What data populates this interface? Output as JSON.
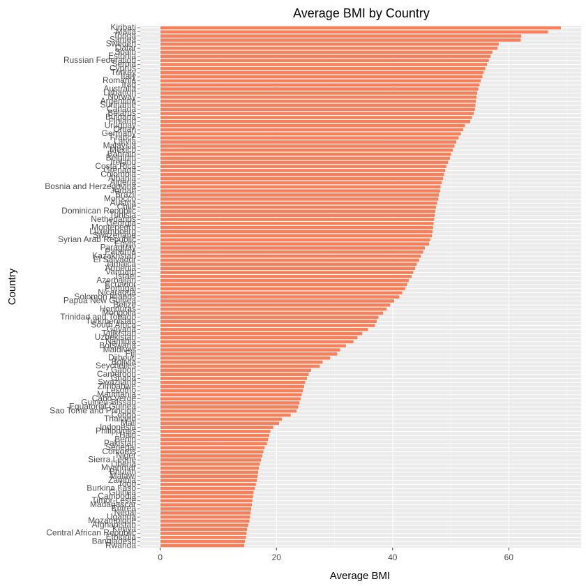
{
  "chart_data": {
    "type": "barh",
    "title": "Average BMI by Country",
    "x_label": "Average BMI",
    "y_label": "Country",
    "categories": [
      "Kiribati",
      "Malta",
      "Tonga",
      "Samoa",
      "Sweden",
      "Qatar",
      "Spain",
      "Estonia",
      "Russian Federation",
      "Serbia",
      "Cyprus",
      "Turkey",
      "Italy",
      "Romania",
      "Iraq",
      "Australia",
      "Lebanon",
      "Norway",
      "Argentina",
      "Suriname",
      "Canada",
      "Belarus",
      "Bulgaria",
      "Finland",
      "Uruguay",
      "Oman",
      "Germany",
      "France",
      "Latvia",
      "Malaysia",
      "Mexico",
      "Bahrain",
      "Belgium",
      "Ireland",
      "Costa Rica",
      "Grenada",
      "Colombia",
      "Albania",
      "Algeria",
      "Bosnia and Herzegovina",
      "Jordan",
      "Brazil",
      "Morocco",
      "Austria",
      "Chile",
      "Dominican Republic",
      "Tunisia",
      "Netherlands",
      "Georgia",
      "Montenegro",
      "Luxembourg",
      "Switzerland",
      "Syrian Arab Republic",
      "Egypt",
      "Paraguay",
      "Panama",
      "Kazakhstan",
      "El Salvador",
      "Jamaica",
      "Armenia",
      "Vanuatu",
      "Israel",
      "Azerbaijan",
      "Ecuador",
      "Portugal",
      "Nicaragua",
      "Solomon Islands",
      "Papua New Guinea",
      "Belize",
      "Honduras",
      "Mongolia",
      "Trinidad and Tobago",
      "Turkmenistan",
      "South Africa",
      "Guyana",
      "Tajikistan",
      "Uzbekistan",
      "Namibia",
      "Botswana",
      "Maldives",
      "Fiji",
      "Djibouti",
      "Bolivia",
      "Seychelles",
      "Gabon",
      "Cameroon",
      "Ghana",
      "Swaziland",
      "Zimbabwe",
      "Lesotho",
      "Mauritania",
      "Cabo Verde",
      "Guinea-Bissau",
      "Equatorial Guinea",
      "Sao Tome and Principe",
      "Congo",
      "Thailand",
      "Mali",
      "Indonesia",
      "Philippines",
      "Haiti",
      "Benin",
      "Pakistan",
      "Senegal",
      "Comoros",
      "Niger",
      "Sierra Leone",
      "Liberia",
      "Myanmar",
      "Bhutan",
      "Malawi",
      "Zambia",
      "Togo",
      "Burkina Faso",
      "Guinea",
      "Cambodia",
      "Timor-Leste",
      "Madagascar",
      "Eritrea",
      "Nepal",
      "Uganda",
      "Mozambique",
      "Afghanistan",
      "Kenya",
      "Central African Republic",
      "Ethiopia",
      "Bangladesh",
      "Rwanda"
    ],
    "values": [
      69.0,
      66.8,
      62.2,
      62.1,
      58.3,
      58.1,
      57.2,
      56.9,
      56.6,
      56.3,
      56.0,
      55.7,
      55.5,
      55.2,
      55.0,
      54.8,
      54.6,
      54.5,
      54.4,
      54.3,
      54.2,
      54.0,
      53.7,
      53.4,
      52.5,
      52.2,
      51.8,
      51.4,
      51.0,
      50.7,
      50.4,
      50.1,
      49.9,
      49.6,
      49.3,
      49.1,
      48.9,
      48.7,
      48.5,
      48.3,
      48.2,
      48.0,
      47.9,
      47.7,
      47.5,
      47.4,
      47.3,
      47.2,
      47.1,
      47.0,
      46.9,
      46.8,
      46.5,
      46.3,
      45.6,
      45.3,
      44.9,
      44.6,
      44.2,
      43.9,
      43.6,
      43.3,
      42.8,
      42.5,
      42.2,
      41.7,
      41.2,
      40.3,
      39.6,
      39.0,
      38.4,
      37.6,
      37.3,
      37.0,
      35.8,
      34.8,
      34.0,
      33.3,
      32.0,
      31.0,
      30.5,
      29.3,
      28.0,
      27.5,
      26.0,
      25.6,
      25.3,
      25.0,
      24.8,
      24.6,
      24.4,
      24.2,
      24.0,
      23.8,
      23.5,
      22.5,
      21.0,
      20.5,
      19.5,
      19.0,
      18.8,
      18.6,
      18.4,
      18.0,
      17.8,
      17.6,
      17.4,
      17.2,
      17.0,
      16.9,
      16.8,
      16.7,
      16.5,
      16.3,
      16.1,
      16.0,
      15.9,
      15.8,
      15.7,
      15.6,
      15.5,
      15.4,
      15.2,
      15.0,
      14.9,
      14.8,
      14.6,
      14.5
    ],
    "color": "#f4815c",
    "xlim": [
      -3.45,
      72.45
    ],
    "xticks": [
      0,
      20,
      40,
      60
    ],
    "grid": true
  }
}
